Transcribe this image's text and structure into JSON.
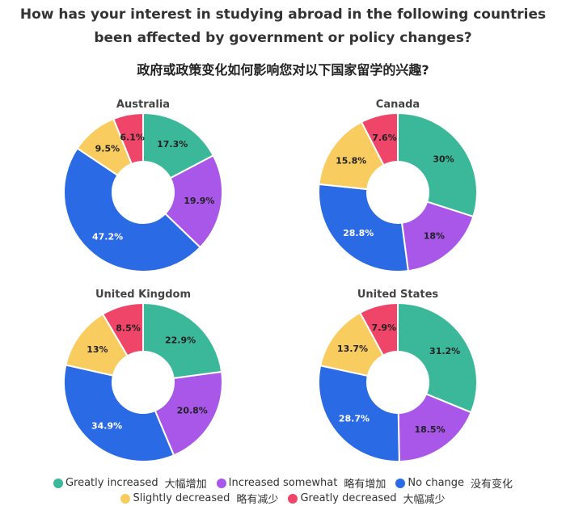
{
  "title": {
    "line1": "How has your interest in studying abroad in the following countries",
    "line2": "been affected by government or policy changes?",
    "line3": "政府或政策变化如何影响您对以下国家留学的兴趣?"
  },
  "legend": [
    {
      "label": "Greatly increased",
      "label_zh": "大幅增加",
      "color": "#3bb89a"
    },
    {
      "label": "Increased somewhat",
      "label_zh": "略有增加",
      "color": "#a857e9"
    },
    {
      "label": "No change",
      "label_zh": "没有变化",
      "color": "#2b6ae5"
    },
    {
      "label": "Slightly decreased",
      "label_zh": "略有减少",
      "color": "#f9cc60"
    },
    {
      "label": "Greatly decreased",
      "label_zh": "大幅减少",
      "color": "#ef4568"
    }
  ],
  "chart_data": [
    {
      "type": "pie",
      "title": "Australia",
      "categories": [
        "Greatly increased",
        "Increased somewhat",
        "No change",
        "Slightly decreased",
        "Greatly decreased"
      ],
      "values": [
        17.3,
        19.9,
        47.2,
        9.5,
        6.1
      ],
      "labels": [
        "17.3%",
        "19.9%",
        "47.2%",
        "9.5%",
        "6.1%"
      ],
      "donut": true
    },
    {
      "type": "pie",
      "title": "Canada",
      "categories": [
        "Greatly increased",
        "Increased somewhat",
        "No change",
        "Slightly decreased",
        "Greatly decreased"
      ],
      "values": [
        30,
        18,
        28.8,
        15.8,
        7.6
      ],
      "labels": [
        "30%",
        "18%",
        "28.8%",
        "15.8%",
        "7.6%"
      ],
      "donut": true
    },
    {
      "type": "pie",
      "title": "United Kingdom",
      "categories": [
        "Greatly increased",
        "Increased somewhat",
        "No change",
        "Slightly decreased",
        "Greatly decreased"
      ],
      "values": [
        22.9,
        20.8,
        34.9,
        13,
        8.5
      ],
      "labels": [
        "22.9%",
        "20.8%",
        "34.9%",
        "13%",
        "8.5%"
      ],
      "donut": true
    },
    {
      "type": "pie",
      "title": "United States",
      "categories": [
        "Greatly increased",
        "Increased somewhat",
        "No change",
        "Slightly decreased",
        "Greatly decreased"
      ],
      "values": [
        31.2,
        18.5,
        28.7,
        13.7,
        7.9
      ],
      "labels": [
        "31.2%",
        "18.5%",
        "28.7%",
        "13.7%",
        "7.9%"
      ],
      "donut": true
    }
  ]
}
